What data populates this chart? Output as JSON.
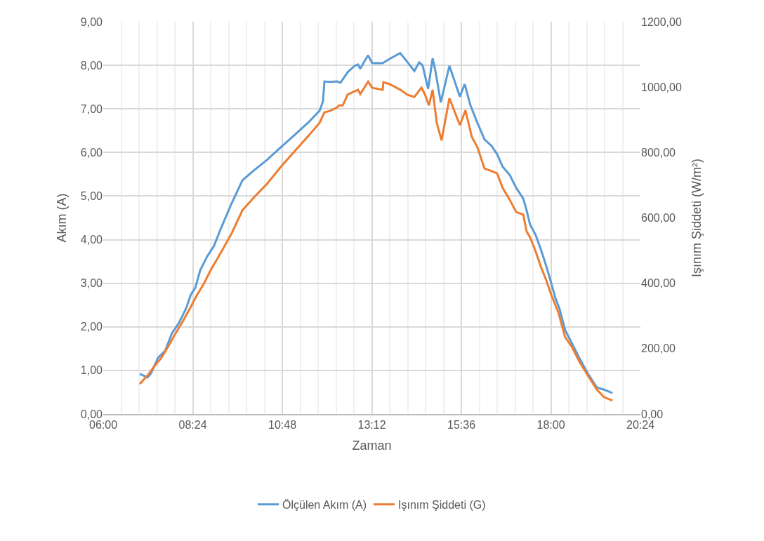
{
  "chart_data": {
    "type": "line",
    "xlabel": "Zaman",
    "ylabel": "Akım (A)",
    "y2label": "Işınım Şiddeti (W/m²)",
    "xlim": [
      6,
      20.4
    ],
    "xticks": [
      {
        "value": 6,
        "label": "06:00"
      },
      {
        "value": 6.48,
        "label": null
      },
      {
        "value": 6.96,
        "label": null
      },
      {
        "value": 7.44,
        "label": null
      },
      {
        "value": 7.92,
        "label": null
      },
      {
        "value": 8.4,
        "label": "08:24"
      },
      {
        "value": 8.88,
        "label": null
      },
      {
        "value": 9.36,
        "label": null
      },
      {
        "value": 9.84,
        "label": null
      },
      {
        "value": 10.32,
        "label": null
      },
      {
        "value": 10.8,
        "label": "10:48"
      },
      {
        "value": 11.28,
        "label": null
      },
      {
        "value": 11.76,
        "label": null
      },
      {
        "value": 12.24,
        "label": null
      },
      {
        "value": 12.72,
        "label": null
      },
      {
        "value": 13.2,
        "label": "13:12"
      },
      {
        "value": 13.68,
        "label": null
      },
      {
        "value": 14.16,
        "label": null
      },
      {
        "value": 14.64,
        "label": null
      },
      {
        "value": 15.12,
        "label": null
      },
      {
        "value": 15.6,
        "label": "15:36"
      },
      {
        "value": 16.08,
        "label": null
      },
      {
        "value": 16.56,
        "label": null
      },
      {
        "value": 17.04,
        "label": null
      },
      {
        "value": 17.52,
        "label": null
      },
      {
        "value": 18,
        "label": "18:00"
      },
      {
        "value": 18.48,
        "label": null
      },
      {
        "value": 18.96,
        "label": null
      },
      {
        "value": 19.44,
        "label": null
      },
      {
        "value": 19.92,
        "label": null
      },
      {
        "value": 20.4,
        "label": "20:24"
      }
    ],
    "ylim": [
      0,
      9
    ],
    "yticks": [
      {
        "value": 0,
        "label": "0,00"
      },
      {
        "value": 1,
        "label": "1,00"
      },
      {
        "value": 2,
        "label": "2,00"
      },
      {
        "value": 3,
        "label": "3,00"
      },
      {
        "value": 4,
        "label": "4,00"
      },
      {
        "value": 5,
        "label": "5,00"
      },
      {
        "value": 6,
        "label": "6,00"
      },
      {
        "value": 7,
        "label": "7,00"
      },
      {
        "value": 8,
        "label": "8,00"
      },
      {
        "value": 9,
        "label": "9,00"
      }
    ],
    "y2lim": [
      0,
      1200
    ],
    "y2ticks": [
      {
        "value": 0,
        "label": "0,00"
      },
      {
        "value": 200,
        "label": "200,00"
      },
      {
        "value": 400,
        "label": "400,00"
      },
      {
        "value": 600,
        "label": "600,00"
      },
      {
        "value": 800,
        "label": "800,00"
      },
      {
        "value": 1000,
        "label": "1000,00"
      },
      {
        "value": 1200,
        "label": "1200,00"
      }
    ],
    "grid": true,
    "legend": "bottom",
    "marker": "none",
    "line_style": "solid",
    "series": [
      {
        "name": "Ölçülen Akım (A)",
        "color": "#5b9bd5",
        "x": [
          6.98,
          7.19,
          7.28,
          7.47,
          7.66,
          7.84,
          8.03,
          8.22,
          8.35,
          8.47,
          8.6,
          8.79,
          8.97,
          9.16,
          9.44,
          9.73,
          10.01,
          10.39,
          10.76,
          11.14,
          11.51,
          11.8,
          11.89,
          11.93,
          12.08,
          12.27,
          12.36,
          12.55,
          12.74,
          12.83,
          12.89,
          13.02,
          13.1,
          13.21,
          13.49,
          13.68,
          13.96,
          14.15,
          14.34,
          14.47,
          14.56,
          14.71,
          14.83,
          14.9,
          15.05,
          15.28,
          15.56,
          15.69,
          15.84,
          16.03,
          16.22,
          16.41,
          16.56,
          16.71,
          16.9,
          17.07,
          17.26,
          17.35,
          17.44,
          17.59,
          17.73,
          17.88,
          17.99,
          18.12,
          18.23,
          18.38,
          18.57,
          18.76,
          18.99,
          19.23,
          19.42,
          19.65
        ],
        "values": [
          0.92,
          0.84,
          0.93,
          1.29,
          1.45,
          1.85,
          2.09,
          2.42,
          2.74,
          2.9,
          3.3,
          3.62,
          3.86,
          4.27,
          4.83,
          5.36,
          5.57,
          5.83,
          6.12,
          6.41,
          6.7,
          6.96,
          7.17,
          7.63,
          7.62,
          7.63,
          7.6,
          7.84,
          7.99,
          8.02,
          7.92,
          8.12,
          8.23,
          8.05,
          8.05,
          8.15,
          8.28,
          8.08,
          7.87,
          8.07,
          8.0,
          7.46,
          8.16,
          7.89,
          7.15,
          7.99,
          7.28,
          7.57,
          7.09,
          6.68,
          6.3,
          6.15,
          5.96,
          5.67,
          5.48,
          5.19,
          4.94,
          4.67,
          4.35,
          4.11,
          3.78,
          3.38,
          3.06,
          2.66,
          2.42,
          1.93,
          1.61,
          1.29,
          0.93,
          0.61,
          0.56,
          0.48
        ]
      },
      {
        "name": "Işınım Şiddeti (G)",
        "color": "#ed7d31",
        "axis": "y2",
        "x": [
          6.98,
          7.19,
          7.37,
          7.56,
          7.75,
          7.94,
          8.13,
          8.32,
          8.5,
          8.69,
          8.88,
          9.07,
          9.26,
          9.44,
          9.73,
          10.01,
          10.39,
          10.76,
          11.14,
          11.51,
          11.8,
          11.93,
          12.08,
          12.27,
          12.32,
          12.42,
          12.55,
          12.74,
          12.83,
          12.89,
          13.02,
          13.1,
          13.21,
          13.49,
          13.51,
          13.68,
          13.96,
          14.15,
          14.34,
          14.53,
          14.62,
          14.73,
          14.83,
          14.94,
          15.07,
          15.28,
          15.56,
          15.71,
          15.88,
          16.03,
          16.22,
          16.41,
          16.56,
          16.71,
          16.9,
          17.07,
          17.26,
          17.35,
          17.44,
          17.59,
          17.73,
          17.88,
          18.01,
          18.2,
          18.38,
          18.57,
          18.76,
          18.99,
          19.23,
          19.42,
          19.65
        ],
        "values": [
          92,
          118,
          146,
          172,
          208,
          247,
          283,
          322,
          361,
          397,
          440,
          477,
          515,
          552,
          623,
          659,
          704,
          756,
          805,
          852,
          891,
          923,
          927,
          938,
          944,
          944,
          977,
          987,
          992,
          979,
          1002,
          1017,
          998,
          992,
          1015,
          1009,
          992,
          977,
          970,
          998,
          979,
          944,
          992,
          891,
          837,
          966,
          884,
          929,
          848,
          816,
          751,
          743,
          736,
          691,
          655,
          618,
          610,
          558,
          541,
          498,
          451,
          408,
          365,
          311,
          236,
          204,
          161,
          118,
          75,
          52,
          41
        ]
      }
    ]
  }
}
